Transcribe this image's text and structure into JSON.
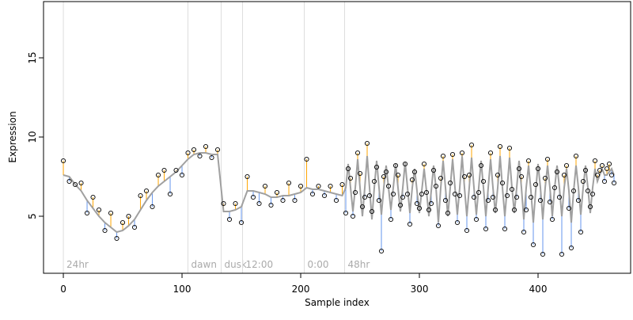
{
  "chart_data": {
    "type": "scatter",
    "xlabel": "Sample index",
    "ylabel": "Expression",
    "xlim": [
      -16.7,
      478
    ],
    "ylim": [
      1.4,
      18.55
    ],
    "xticks": [
      0,
      100,
      200,
      300,
      400
    ],
    "yticks": [
      5,
      10,
      15
    ],
    "point_color": "#000000",
    "fit_color": "#a0a0a0",
    "above_color": "#ffa500",
    "below_color": "#6495ed",
    "annotation_color": "#dddddd",
    "annotations": [
      {
        "x": 0,
        "label": "24hr"
      },
      {
        "x": 105,
        "label": "dawn"
      },
      {
        "x": 133,
        "label": "dusk"
      },
      {
        "x": 151,
        "label": "12:00"
      },
      {
        "x": 203,
        "label": "0:00"
      },
      {
        "x": 237,
        "label": "48hr"
      }
    ],
    "x": [
      0,
      5,
      10,
      15,
      20,
      25,
      30,
      35,
      40,
      45,
      50,
      55,
      60,
      65,
      70,
      75,
      80,
      85,
      90,
      95,
      100,
      105,
      110,
      115,
      120,
      125,
      130,
      135,
      140,
      145,
      150,
      155,
      160,
      165,
      170,
      175,
      180,
      185,
      190,
      195,
      200,
      205,
      210,
      215,
      220,
      225,
      230,
      235,
      238,
      240,
      242,
      244,
      246,
      248,
      250,
      252,
      254,
      256,
      258,
      260,
      262,
      264,
      266,
      268,
      270,
      272,
      274,
      276,
      278,
      280,
      282,
      284,
      286,
      288,
      290,
      292,
      294,
      296,
      298,
      300,
      302,
      304,
      306,
      308,
      310,
      312,
      314,
      316,
      318,
      320,
      322,
      324,
      326,
      328,
      330,
      332,
      334,
      336,
      338,
      340,
      342,
      344,
      346,
      348,
      350,
      352,
      354,
      356,
      358,
      360,
      362,
      364,
      366,
      368,
      370,
      372,
      374,
      376,
      378,
      380,
      382,
      384,
      386,
      388,
      390,
      392,
      394,
      396,
      398,
      400,
      402,
      404,
      406,
      408,
      410,
      412,
      414,
      416,
      418,
      420,
      422,
      424,
      426,
      428,
      430,
      432,
      434,
      436,
      438,
      440,
      442,
      444,
      446,
      448,
      450,
      452,
      454,
      456,
      458,
      460,
      462,
      464
    ],
    "fitted": [
      7.6,
      7.5,
      7.0,
      6.6,
      6.0,
      5.5,
      5.0,
      4.6,
      4.3,
      4.0,
      4.1,
      4.4,
      4.8,
      5.4,
      6.0,
      6.5,
      6.9,
      7.2,
      7.5,
      7.8,
      8.2,
      8.6,
      8.9,
      9.0,
      9.0,
      8.9,
      8.9,
      5.3,
      5.3,
      5.4,
      5.6,
      6.6,
      6.6,
      6.5,
      6.4,
      6.2,
      6.2,
      6.3,
      6.3,
      6.4,
      6.5,
      6.8,
      6.7,
      6.7,
      6.6,
      6.5,
      6.4,
      6.3,
      6.8,
      8.3,
      6.8,
      5.3,
      6.8,
      8.6,
      6.8,
      5.0,
      6.8,
      8.8,
      6.8,
      4.8,
      6.8,
      8.5,
      6.8,
      5.1,
      6.8,
      8.2,
      6.8,
      5.4,
      6.8,
      8.3,
      6.8,
      5.3,
      6.8,
      8.4,
      6.8,
      5.2,
      6.8,
      8.0,
      6.6,
      5.2,
      6.6,
      8.0,
      6.6,
      5.0,
      6.6,
      8.2,
      6.8,
      4.6,
      6.8,
      8.5,
      6.8,
      5.0,
      6.8,
      8.6,
      6.8,
      5.1,
      6.8,
      8.8,
      6.8,
      5.0,
      6.8,
      8.7,
      6.8,
      5.1,
      6.8,
      8.5,
      6.8,
      5.0,
      6.8,
      8.6,
      6.8,
      5.2,
      6.8,
      8.8,
      6.8,
      5.0,
      6.8,
      8.7,
      6.8,
      5.2,
      6.8,
      8.5,
      6.8,
      4.8,
      6.8,
      8.2,
      6.6,
      4.6,
      6.6,
      8.3,
      6.8,
      4.8,
      6.8,
      8.2,
      6.8,
      5.0,
      6.8,
      8.2,
      6.8,
      5.0,
      6.8,
      8.0,
      6.6,
      4.6,
      6.6,
      8.2,
      6.8,
      5.1,
      6.8,
      8.2,
      6.8,
      5.2,
      6.8,
      8.0,
      7.2,
      7.6,
      8.0,
      7.6,
      7.6,
      7.8,
      8.0,
      7.6
    ],
    "observed": [
      8.5,
      7.2,
      7.0,
      7.1,
      5.2,
      6.2,
      5.4,
      4.1,
      5.2,
      3.6,
      4.6,
      5.0,
      4.3,
      6.3,
      6.6,
      5.6,
      7.6,
      7.9,
      6.4,
      7.9,
      7.6,
      9.0,
      9.2,
      8.8,
      9.4,
      8.7,
      9.2,
      5.8,
      4.8,
      5.8,
      4.6,
      7.5,
      6.2,
      5.8,
      6.9,
      5.7,
      6.5,
      6.0,
      7.1,
      6.0,
      6.9,
      8.6,
      6.4,
      6.9,
      6.3,
      6.9,
      6.0,
      7.0,
      5.2,
      8.0,
      7.4,
      5.0,
      6.5,
      9.0,
      7.7,
      5.6,
      6.2,
      9.6,
      6.3,
      5.3,
      7.2,
      8.1,
      6.0,
      2.8,
      7.5,
      7.8,
      6.9,
      4.8,
      6.4,
      8.2,
      7.6,
      5.7,
      6.2,
      8.3,
      6.4,
      4.5,
      7.3,
      7.8,
      5.8,
      5.5,
      6.4,
      8.3,
      6.5,
      5.4,
      5.8,
      7.9,
      6.9,
      4.4,
      7.4,
      8.8,
      6.0,
      5.2,
      7.1,
      8.9,
      6.4,
      4.6,
      6.3,
      9.0,
      7.5,
      4.1,
      7.6,
      9.5,
      6.2,
      4.8,
      6.5,
      8.2,
      7.2,
      4.2,
      6.0,
      9.0,
      6.2,
      5.4,
      7.6,
      9.4,
      7.1,
      4.2,
      6.3,
      9.3,
      6.7,
      5.4,
      6.2,
      8.0,
      7.5,
      4.0,
      5.4,
      8.5,
      6.2,
      3.2,
      7.0,
      8.0,
      6.0,
      2.6,
      7.4,
      8.6,
      5.9,
      4.8,
      6.8,
      7.8,
      6.2,
      2.6,
      7.6,
      8.2,
      5.5,
      3.0,
      6.6,
      8.8,
      6.0,
      4.0,
      7.2,
      7.9,
      6.6,
      5.6,
      6.4,
      8.5,
      7.6,
      7.9,
      8.2,
      7.2,
      8.0,
      8.3,
      7.6,
      7.1
    ]
  }
}
